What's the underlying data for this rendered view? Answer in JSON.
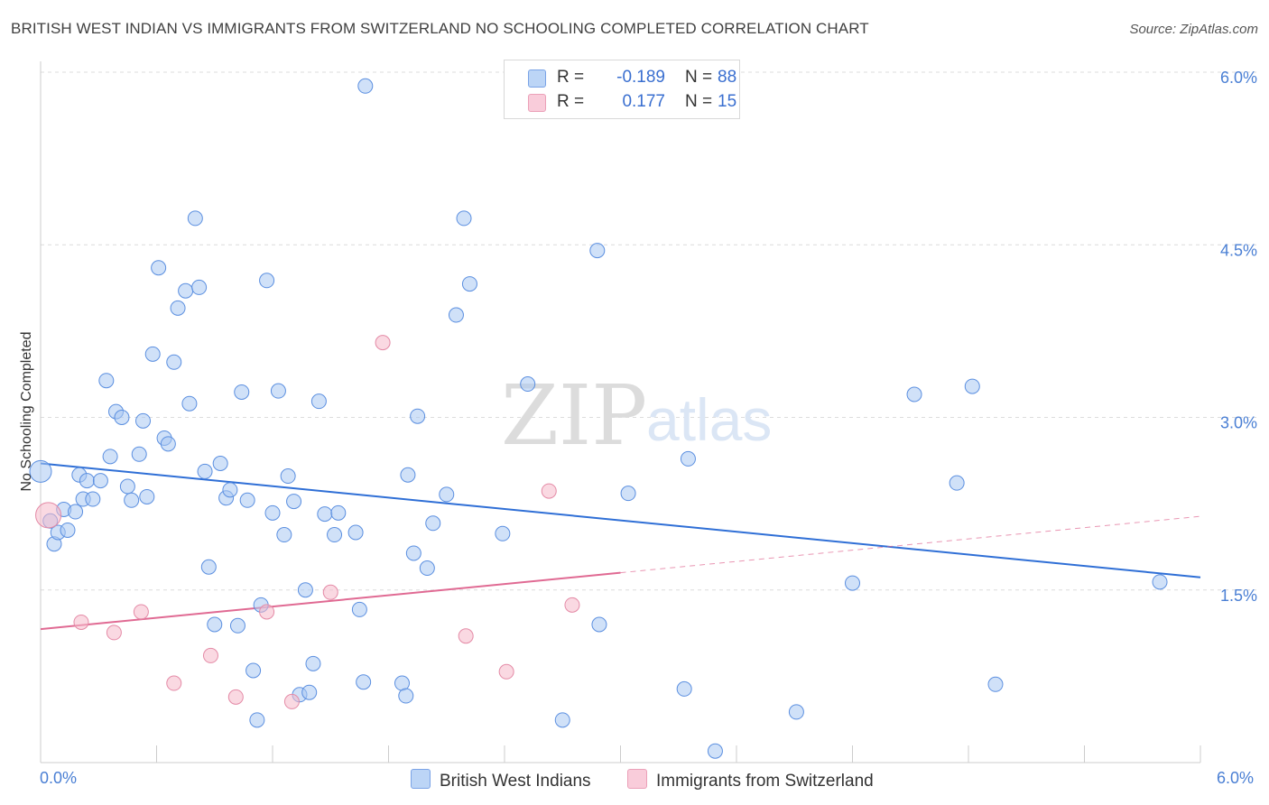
{
  "header": {
    "title": "BRITISH WEST INDIAN VS IMMIGRANTS FROM SWITZERLAND NO SCHOOLING COMPLETED CORRELATION CHART",
    "source": "Source: ZipAtlas.com"
  },
  "watermark": {
    "zip": "ZIP",
    "atlas": "atlas"
  },
  "legend": {
    "rows": [
      {
        "r_label": "R =",
        "r_value": "-0.189",
        "n_label": "N =",
        "n_value": "88",
        "color": "#a9c8f3"
      },
      {
        "r_label": "R =",
        "r_value": "0.177",
        "n_label": "N =",
        "n_value": "15",
        "color": "#f6b9cb"
      }
    ]
  },
  "bottom_legend": {
    "series1": "British West Indians",
    "series2": "Immigrants from Switzerland"
  },
  "x_axis": {
    "min_label": "0.0%",
    "max_label": "6.0%"
  },
  "chart_data": {
    "type": "scatter",
    "title": "BRITISH WEST INDIAN VS IMMIGRANTS FROM SWITZERLAND NO SCHOOLING COMPLETED CORRELATION CHART",
    "xlabel": "",
    "ylabel": "No Schooling Completed",
    "xlim": [
      0,
      6
    ],
    "ylim": [
      0,
      6
    ],
    "yticks": [
      {
        "value": 1.5,
        "label": "1.5%"
      },
      {
        "value": 3.0,
        "label": "3.0%"
      },
      {
        "value": 4.5,
        "label": "4.5%"
      },
      {
        "value": 6.0,
        "label": "6.0%"
      }
    ],
    "grid": true,
    "legend_position": "top-center",
    "series": [
      {
        "name": "British West Indians",
        "color": "#a9c8f3",
        "edge": "#5b8fe0",
        "trend": {
          "x0": 0.0,
          "y0": 2.6,
          "x1": 6.0,
          "y1": 1.61,
          "color": "#2f6fd6"
        },
        "points": [
          [
            0.0,
            2.53
          ],
          [
            0.05,
            2.1
          ],
          [
            0.07,
            1.9
          ],
          [
            0.09,
            2.0
          ],
          [
            0.12,
            2.2
          ],
          [
            0.14,
            2.02
          ],
          [
            0.18,
            2.18
          ],
          [
            0.2,
            2.5
          ],
          [
            0.22,
            2.29
          ],
          [
            0.24,
            2.45
          ],
          [
            0.27,
            2.29
          ],
          [
            0.31,
            2.45
          ],
          [
            0.34,
            3.32
          ],
          [
            0.36,
            2.66
          ],
          [
            0.39,
            3.05
          ],
          [
            0.42,
            3.0
          ],
          [
            0.45,
            2.4
          ],
          [
            0.47,
            2.28
          ],
          [
            0.51,
            2.68
          ],
          [
            0.53,
            2.97
          ],
          [
            0.55,
            2.31
          ],
          [
            0.58,
            3.55
          ],
          [
            0.61,
            4.3
          ],
          [
            0.64,
            2.82
          ],
          [
            0.66,
            2.77
          ],
          [
            0.69,
            3.48
          ],
          [
            0.71,
            3.95
          ],
          [
            0.75,
            4.1
          ],
          [
            0.77,
            3.12
          ],
          [
            0.8,
            4.73
          ],
          [
            0.82,
            4.13
          ],
          [
            0.85,
            2.53
          ],
          [
            0.87,
            1.7
          ],
          [
            0.9,
            1.2
          ],
          [
            0.93,
            2.6
          ],
          [
            0.96,
            2.3
          ],
          [
            0.98,
            2.37
          ],
          [
            1.02,
            1.19
          ],
          [
            1.04,
            3.22
          ],
          [
            1.07,
            2.28
          ],
          [
            1.1,
            0.8
          ],
          [
            1.12,
            0.37
          ],
          [
            1.14,
            1.37
          ],
          [
            1.17,
            4.19
          ],
          [
            1.2,
            2.17
          ],
          [
            1.23,
            3.23
          ],
          [
            1.26,
            1.98
          ],
          [
            1.28,
            2.49
          ],
          [
            1.31,
            2.27
          ],
          [
            1.34,
            0.59
          ],
          [
            1.37,
            1.5
          ],
          [
            1.39,
            0.61
          ],
          [
            1.41,
            0.86
          ],
          [
            1.44,
            3.14
          ],
          [
            1.47,
            2.16
          ],
          [
            1.52,
            1.98
          ],
          [
            1.54,
            2.17
          ],
          [
            1.63,
            2.0
          ],
          [
            1.65,
            1.33
          ],
          [
            1.67,
            0.7
          ],
          [
            1.68,
            5.88
          ],
          [
            1.87,
            0.69
          ],
          [
            1.89,
            0.58
          ],
          [
            1.9,
            2.5
          ],
          [
            1.93,
            1.82
          ],
          [
            1.95,
            3.01
          ],
          [
            2.0,
            1.69
          ],
          [
            2.03,
            2.08
          ],
          [
            2.1,
            2.33
          ],
          [
            2.15,
            3.89
          ],
          [
            2.19,
            4.73
          ],
          [
            2.22,
            4.16
          ],
          [
            2.39,
            1.99
          ],
          [
            2.52,
            3.29
          ],
          [
            2.7,
            0.37
          ],
          [
            2.88,
            4.45
          ],
          [
            2.89,
            1.2
          ],
          [
            3.04,
            2.34
          ],
          [
            3.33,
            0.64
          ],
          [
            3.35,
            2.64
          ],
          [
            3.49,
            0.1
          ],
          [
            3.91,
            0.44
          ],
          [
            4.2,
            1.56
          ],
          [
            4.52,
            3.2
          ],
          [
            4.74,
            2.43
          ],
          [
            4.82,
            3.27
          ],
          [
            4.94,
            0.68
          ],
          [
            5.79,
            1.57
          ]
        ]
      },
      {
        "name": "Immigrants from Switzerland",
        "color": "#f6b9cb",
        "edge": "#e48aa6",
        "trend": {
          "x0": 0.0,
          "y0": 1.16,
          "x1": 3.0,
          "y1": 1.65,
          "dash_x1": 6.0,
          "dash_y1": 2.14,
          "color": "#e06a93"
        },
        "points": [
          [
            0.04,
            2.15
          ],
          [
            0.21,
            1.22
          ],
          [
            0.38,
            1.13
          ],
          [
            0.52,
            1.31
          ],
          [
            0.69,
            0.69
          ],
          [
            0.88,
            0.93
          ],
          [
            1.01,
            0.57
          ],
          [
            1.17,
            1.31
          ],
          [
            1.3,
            0.53
          ],
          [
            1.5,
            1.48
          ],
          [
            1.77,
            3.65
          ],
          [
            2.2,
            1.1
          ],
          [
            2.41,
            0.79
          ],
          [
            2.63,
            2.36
          ],
          [
            2.75,
            1.37
          ]
        ]
      }
    ]
  }
}
